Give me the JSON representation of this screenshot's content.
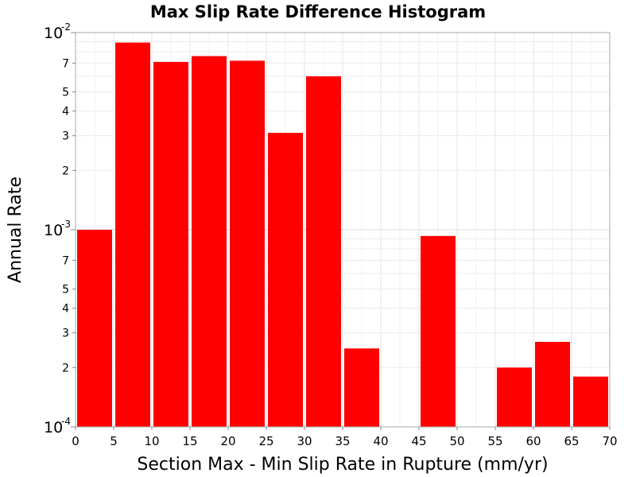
{
  "chart_data": {
    "type": "bar",
    "title": "Max Slip Rate Difference Histogram",
    "xlabel": "Section Max - Min Slip Rate in Rupture (mm/yr)",
    "ylabel": "Annual Rate",
    "x_scale": "linear",
    "y_scale": "log",
    "xlim": [
      0,
      70
    ],
    "ylim": [
      0.0001,
      0.01
    ],
    "x_ticks": [
      "0",
      "5",
      "10",
      "15",
      "20",
      "25",
      "30",
      "35",
      "40",
      "45",
      "50",
      "55",
      "60",
      "65",
      "70"
    ],
    "y_major_ticks": [
      {
        "value": 0.0001,
        "base": "10",
        "exp": "-4"
      },
      {
        "value": 0.001,
        "base": "10",
        "exp": "-3"
      },
      {
        "value": 0.01,
        "base": "10",
        "exp": "-2"
      }
    ],
    "y_minor_ticks": [
      {
        "value": 0.0002,
        "label": "2"
      },
      {
        "value": 0.0003,
        "label": "3"
      },
      {
        "value": 0.0004,
        "label": "4"
      },
      {
        "value": 0.0005,
        "label": "5"
      },
      {
        "value": 0.0007,
        "label": "7"
      },
      {
        "value": 0.002,
        "label": "2"
      },
      {
        "value": 0.003,
        "label": "3"
      },
      {
        "value": 0.004,
        "label": "4"
      },
      {
        "value": 0.005,
        "label": "5"
      },
      {
        "value": 0.007,
        "label": "7"
      }
    ],
    "bin_width": 5,
    "bin_starts": [
      0,
      5,
      10,
      15,
      20,
      25,
      30,
      35,
      40,
      45,
      50,
      55,
      60,
      65
    ],
    "values": [
      0.001,
      0.0089,
      0.0071,
      0.0076,
      0.0072,
      0.0031,
      0.006,
      0.00025,
      null,
      0.00093,
      null,
      0.0002,
      0.00027,
      0.00018
    ],
    "grid": true,
    "bar_color": "#ff0000"
  }
}
